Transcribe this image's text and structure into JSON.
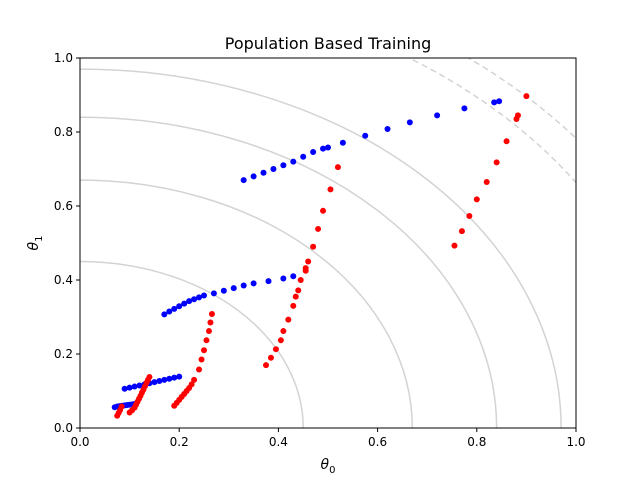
{
  "chart_data": {
    "type": "scatter",
    "title": "Population Based Training",
    "xlabel_symbol": "θ",
    "xlabel_sub": "0",
    "ylabel_symbol": "θ",
    "ylabel_sub": "1",
    "xlim": [
      0,
      1
    ],
    "ylim": [
      0,
      1
    ],
    "x_ticks": [
      0.0,
      0.2,
      0.4,
      0.6,
      0.8,
      1.0
    ],
    "y_ticks": [
      0.0,
      0.2,
      0.4,
      0.6,
      0.8,
      1.0
    ],
    "x_tick_labels": [
      "0.0",
      "0.2",
      "0.4",
      "0.6",
      "0.8",
      "1.0"
    ],
    "y_tick_labels": [
      "0.0",
      "0.2",
      "0.4",
      "0.6",
      "0.8",
      "1.0"
    ],
    "grid": false,
    "contours": {
      "color": "#d3d3d3",
      "solid_radii": [
        0.45,
        0.67,
        0.84,
        0.97
      ],
      "dashed_radii": [
        1.2,
        1.27
      ]
    },
    "series": [
      {
        "color": "#0000ff",
        "points": [
          [
            0.07,
            0.056
          ],
          [
            0.075,
            0.058
          ],
          [
            0.08,
            0.059
          ],
          [
            0.085,
            0.06
          ],
          [
            0.09,
            0.061
          ],
          [
            0.095,
            0.062
          ],
          [
            0.1,
            0.063
          ],
          [
            0.105,
            0.064
          ],
          [
            0.11,
            0.065
          ],
          [
            0.09,
            0.106
          ],
          [
            0.1,
            0.109
          ],
          [
            0.11,
            0.112
          ],
          [
            0.12,
            0.115
          ],
          [
            0.13,
            0.118
          ],
          [
            0.14,
            0.121
          ],
          [
            0.15,
            0.124
          ],
          [
            0.16,
            0.127
          ],
          [
            0.17,
            0.13
          ],
          [
            0.18,
            0.133
          ],
          [
            0.19,
            0.136
          ],
          [
            0.2,
            0.139
          ],
          [
            0.17,
            0.307
          ],
          [
            0.18,
            0.315
          ],
          [
            0.19,
            0.322
          ],
          [
            0.2,
            0.329
          ],
          [
            0.21,
            0.336
          ],
          [
            0.22,
            0.343
          ],
          [
            0.23,
            0.348
          ],
          [
            0.24,
            0.353
          ],
          [
            0.25,
            0.358
          ],
          [
            0.27,
            0.364
          ],
          [
            0.29,
            0.371
          ],
          [
            0.31,
            0.378
          ],
          [
            0.33,
            0.385
          ],
          [
            0.35,
            0.391
          ],
          [
            0.38,
            0.397
          ],
          [
            0.41,
            0.404
          ],
          [
            0.43,
            0.41
          ],
          [
            0.33,
            0.67
          ],
          [
            0.35,
            0.68
          ],
          [
            0.37,
            0.69
          ],
          [
            0.39,
            0.7
          ],
          [
            0.41,
            0.71
          ],
          [
            0.43,
            0.72
          ],
          [
            0.45,
            0.733
          ],
          [
            0.47,
            0.746
          ],
          [
            0.49,
            0.755
          ],
          [
            0.5,
            0.758
          ],
          [
            0.53,
            0.771
          ],
          [
            0.575,
            0.79
          ],
          [
            0.62,
            0.808
          ],
          [
            0.665,
            0.826
          ],
          [
            0.72,
            0.845
          ],
          [
            0.775,
            0.864
          ],
          [
            0.835,
            0.88
          ],
          [
            0.845,
            0.883
          ]
        ]
      },
      {
        "color": "#ff0000",
        "points": [
          [
            0.075,
            0.033
          ],
          [
            0.078,
            0.041
          ],
          [
            0.081,
            0.049
          ],
          [
            0.084,
            0.058
          ],
          [
            0.1,
            0.042
          ],
          [
            0.105,
            0.048
          ],
          [
            0.11,
            0.055
          ],
          [
            0.113,
            0.063
          ],
          [
            0.116,
            0.071
          ],
          [
            0.119,
            0.079
          ],
          [
            0.122,
            0.087
          ],
          [
            0.125,
            0.096
          ],
          [
            0.128,
            0.104
          ],
          [
            0.131,
            0.113
          ],
          [
            0.134,
            0.122
          ],
          [
            0.137,
            0.13
          ],
          [
            0.14,
            0.138
          ],
          [
            0.19,
            0.06
          ],
          [
            0.195,
            0.068
          ],
          [
            0.2,
            0.076
          ],
          [
            0.205,
            0.084
          ],
          [
            0.21,
            0.092
          ],
          [
            0.215,
            0.1
          ],
          [
            0.22,
            0.108
          ],
          [
            0.225,
            0.118
          ],
          [
            0.23,
            0.13
          ],
          [
            0.24,
            0.158
          ],
          [
            0.245,
            0.185
          ],
          [
            0.25,
            0.21
          ],
          [
            0.255,
            0.237
          ],
          [
            0.26,
            0.262
          ],
          [
            0.263,
            0.285
          ],
          [
            0.266,
            0.308
          ],
          [
            0.375,
            0.17
          ],
          [
            0.385,
            0.19
          ],
          [
            0.395,
            0.213
          ],
          [
            0.405,
            0.237
          ],
          [
            0.41,
            0.262
          ],
          [
            0.42,
            0.293
          ],
          [
            0.43,
            0.33
          ],
          [
            0.435,
            0.355
          ],
          [
            0.44,
            0.372
          ],
          [
            0.445,
            0.4
          ],
          [
            0.455,
            0.425
          ],
          [
            0.455,
            0.432
          ],
          [
            0.46,
            0.45
          ],
          [
            0.47,
            0.49
          ],
          [
            0.48,
            0.538
          ],
          [
            0.49,
            0.587
          ],
          [
            0.505,
            0.645
          ],
          [
            0.52,
            0.705
          ],
          [
            0.755,
            0.493
          ],
          [
            0.77,
            0.532
          ],
          [
            0.785,
            0.573
          ],
          [
            0.8,
            0.618
          ],
          [
            0.82,
            0.665
          ],
          [
            0.84,
            0.718
          ],
          [
            0.86,
            0.775
          ],
          [
            0.88,
            0.835
          ],
          [
            0.883,
            0.845
          ],
          [
            0.9,
            0.897
          ]
        ]
      }
    ]
  }
}
